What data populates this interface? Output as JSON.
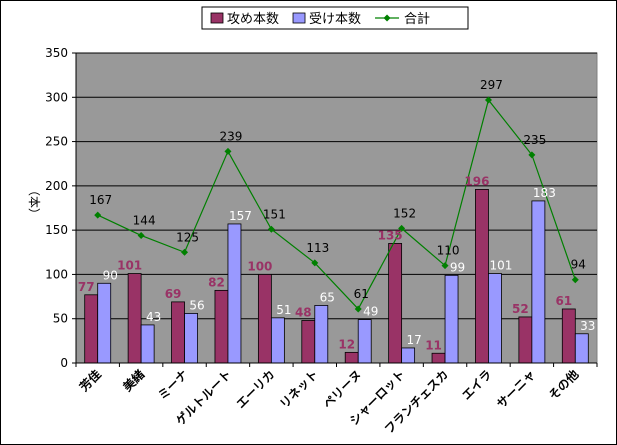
{
  "chart_data": {
    "type": "bar",
    "categories": [
      "芳佳",
      "美緒",
      "ミーナ",
      "ゲルトルート",
      "エーリカ",
      "リネット",
      "ペリーヌ",
      "シャーロット",
      "フランチェスカ",
      "エイラ",
      "サーニャ",
      "その他"
    ],
    "series": [
      {
        "name": "攻め本数",
        "type": "bar",
        "color": "#993366",
        "label_color": "#993366",
        "values": [
          77,
          101,
          69,
          82,
          100,
          48,
          12,
          135,
          11,
          196,
          52,
          61
        ]
      },
      {
        "name": "受け本数",
        "type": "bar",
        "color": "#9999ff",
        "label_color": "#ffffff",
        "values": [
          90,
          43,
          56,
          157,
          51,
          65,
          49,
          17,
          99,
          101,
          183,
          33
        ]
      },
      {
        "name": "合計",
        "type": "line",
        "color": "#008000",
        "label_color": "#000000",
        "values": [
          167,
          144,
          125,
          239,
          151,
          113,
          61,
          152,
          110,
          297,
          235,
          94
        ]
      }
    ],
    "ylabel": "（本）",
    "ylim": [
      0,
      350
    ],
    "yticks": [
      0,
      50,
      100,
      150,
      200,
      250,
      300,
      350
    ],
    "grid": true,
    "plot_background": "#999999",
    "legend": "top-center"
  }
}
